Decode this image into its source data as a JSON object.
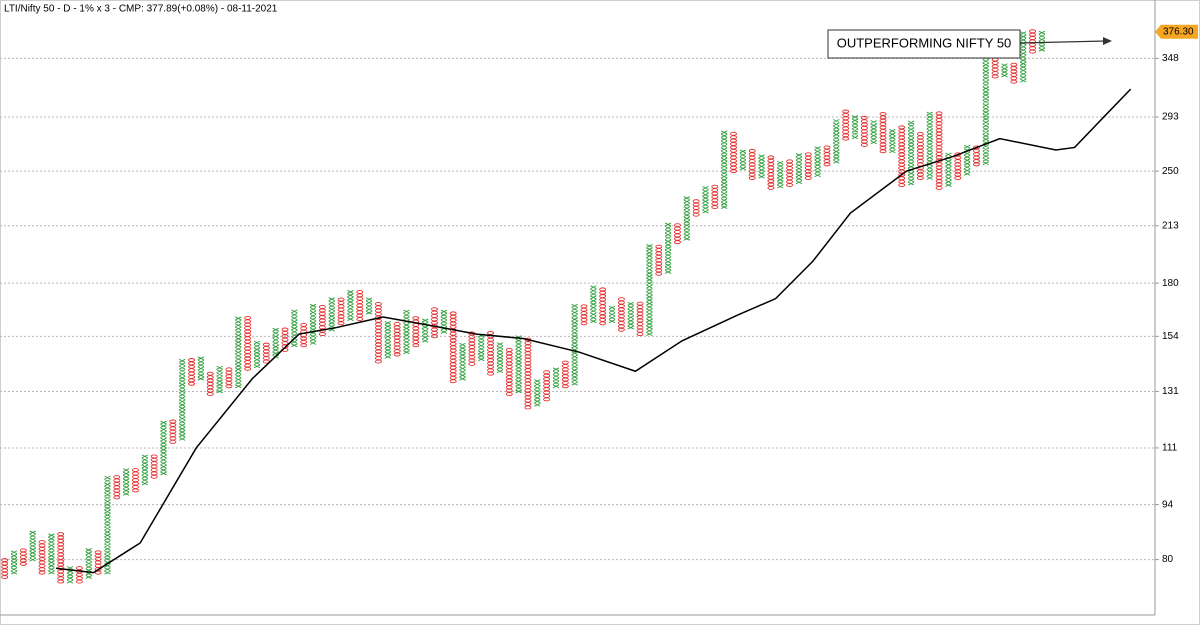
{
  "chart_data": {
    "type": "point-and-figure",
    "title": "LTI/Nifty 50 - D - 1% x 3 - CMP: 377.89(+0.08%) - 08-11-2021",
    "annotation": "OUTPERFORMING NIFTY 50",
    "log_scale": true,
    "grid": true,
    "x_color": "#2e9e3a",
    "o_color": "#e52b2b",
    "ma_color": "#000000",
    "ylim": [
      68,
      413
    ],
    "yticks": [
      80,
      94,
      111,
      131,
      154,
      180,
      213,
      250,
      293,
      348
    ],
    "last_price": {
      "value": 376.3,
      "label": "376.30"
    },
    "xlim": [
      0,
      122
    ],
    "columns": [
      {
        "box": "o",
        "low": 76,
        "high": 80
      },
      {
        "box": "x",
        "low": 77,
        "high": 82
      },
      {
        "box": "o",
        "low": 79,
        "high": 82
      },
      {
        "box": "x",
        "low": 80,
        "high": 87
      },
      {
        "box": "o",
        "low": 77,
        "high": 84
      },
      {
        "box": "x",
        "low": 77,
        "high": 86
      },
      {
        "box": "o",
        "low": 75,
        "high": 86
      },
      {
        "box": "x",
        "low": 75,
        "high": 78
      },
      {
        "box": "o",
        "low": 75,
        "high": 78
      },
      {
        "box": "x",
        "low": 76,
        "high": 82
      },
      {
        "box": "o",
        "low": 77,
        "high": 82
      },
      {
        "box": "x",
        "low": 77,
        "high": 102
      },
      {
        "box": "o",
        "low": 96,
        "high": 102
      },
      {
        "box": "x",
        "low": 97,
        "high": 104
      },
      {
        "box": "o",
        "low": 98,
        "high": 104
      },
      {
        "box": "x",
        "low": 100,
        "high": 108
      },
      {
        "box": "o",
        "low": 102,
        "high": 108
      },
      {
        "box": "x",
        "low": 103,
        "high": 120
      },
      {
        "box": "o",
        "low": 113,
        "high": 120
      },
      {
        "box": "x",
        "low": 114,
        "high": 143
      },
      {
        "box": "o",
        "low": 134,
        "high": 143
      },
      {
        "box": "x",
        "low": 136,
        "high": 145
      },
      {
        "box": "o",
        "low": 130,
        "high": 138
      },
      {
        "box": "x",
        "low": 131,
        "high": 140
      },
      {
        "box": "o",
        "low": 133,
        "high": 140
      },
      {
        "box": "x",
        "low": 133,
        "high": 163
      },
      {
        "box": "o",
        "low": 140,
        "high": 163
      },
      {
        "box": "x",
        "low": 141,
        "high": 151
      },
      {
        "box": "o",
        "low": 143,
        "high": 151
      },
      {
        "box": "x",
        "low": 145,
        "high": 157
      },
      {
        "box": "o",
        "low": 148,
        "high": 157
      },
      {
        "box": "x",
        "low": 150,
        "high": 165
      },
      {
        "box": "o",
        "low": 150,
        "high": 160
      },
      {
        "box": "x",
        "low": 151,
        "high": 168
      },
      {
        "box": "o",
        "low": 155,
        "high": 168
      },
      {
        "box": "x",
        "low": 157,
        "high": 172
      },
      {
        "box": "o",
        "low": 160,
        "high": 172
      },
      {
        "box": "x",
        "low": 162,
        "high": 175
      },
      {
        "box": "o",
        "low": 162,
        "high": 175
      },
      {
        "box": "x",
        "low": 165,
        "high": 172
      },
      {
        "box": "o",
        "low": 143,
        "high": 170
      },
      {
        "box": "x",
        "low": 145,
        "high": 160
      },
      {
        "box": "o",
        "low": 146,
        "high": 160
      },
      {
        "box": "x",
        "low": 147,
        "high": 165
      },
      {
        "box": "o",
        "low": 150,
        "high": 162
      },
      {
        "box": "x",
        "low": 152,
        "high": 162
      },
      {
        "box": "o",
        "low": 154,
        "high": 166
      },
      {
        "box": "x",
        "low": 156,
        "high": 165
      },
      {
        "box": "o",
        "low": 135,
        "high": 165
      },
      {
        "box": "x",
        "low": 136,
        "high": 150
      },
      {
        "box": "o",
        "low": 142,
        "high": 155
      },
      {
        "box": "x",
        "low": 144,
        "high": 155
      },
      {
        "box": "o",
        "low": 138,
        "high": 155
      },
      {
        "box": "x",
        "low": 139,
        "high": 150
      },
      {
        "box": "o",
        "low": 130,
        "high": 148
      },
      {
        "box": "x",
        "low": 131,
        "high": 153
      },
      {
        "box": "o",
        "low": 125,
        "high": 153
      },
      {
        "box": "x",
        "low": 126,
        "high": 135
      },
      {
        "box": "o",
        "low": 128,
        "high": 138
      },
      {
        "box": "x",
        "low": 133,
        "high": 140
      },
      {
        "box": "o",
        "low": 133,
        "high": 142
      },
      {
        "box": "x",
        "low": 134,
        "high": 168
      },
      {
        "box": "o",
        "low": 160,
        "high": 168
      },
      {
        "box": "x",
        "low": 161,
        "high": 178
      },
      {
        "box": "o",
        "low": 160,
        "high": 177
      },
      {
        "box": "x",
        "low": 161,
        "high": 168
      },
      {
        "box": "o",
        "low": 157,
        "high": 172
      },
      {
        "box": "x",
        "low": 158,
        "high": 170
      },
      {
        "box": "o",
        "low": 155,
        "high": 169
      },
      {
        "box": "x",
        "low": 155,
        "high": 200
      },
      {
        "box": "o",
        "low": 185,
        "high": 200
      },
      {
        "box": "x",
        "low": 186,
        "high": 213
      },
      {
        "box": "o",
        "low": 203,
        "high": 213
      },
      {
        "box": "x",
        "low": 205,
        "high": 230
      },
      {
        "box": "o",
        "low": 220,
        "high": 230
      },
      {
        "box": "x",
        "low": 222,
        "high": 238
      },
      {
        "box": "o",
        "low": 225,
        "high": 238
      },
      {
        "box": "x",
        "low": 225,
        "high": 280
      },
      {
        "box": "o",
        "low": 250,
        "high": 280
      },
      {
        "box": "x",
        "low": 252,
        "high": 265
      },
      {
        "box": "o",
        "low": 245,
        "high": 265
      },
      {
        "box": "x",
        "low": 246,
        "high": 262
      },
      {
        "box": "o",
        "low": 238,
        "high": 260
      },
      {
        "box": "x",
        "low": 239,
        "high": 255
      },
      {
        "box": "o",
        "low": 240,
        "high": 258
      },
      {
        "box": "x",
        "low": 242,
        "high": 262
      },
      {
        "box": "o",
        "low": 245,
        "high": 262
      },
      {
        "box": "x",
        "low": 247,
        "high": 268
      },
      {
        "box": "o",
        "low": 255,
        "high": 268
      },
      {
        "box": "x",
        "low": 257,
        "high": 290
      },
      {
        "box": "o",
        "low": 275,
        "high": 298
      },
      {
        "box": "x",
        "low": 276,
        "high": 292
      },
      {
        "box": "o",
        "low": 270,
        "high": 292
      },
      {
        "box": "x",
        "low": 272,
        "high": 290
      },
      {
        "box": "o",
        "low": 265,
        "high": 295
      },
      {
        "box": "x",
        "low": 265,
        "high": 282
      },
      {
        "box": "o",
        "low": 240,
        "high": 285
      },
      {
        "box": "x",
        "low": 241,
        "high": 287
      },
      {
        "box": "o",
        "low": 245,
        "high": 280
      },
      {
        "box": "x",
        "low": 245,
        "high": 295
      },
      {
        "box": "o",
        "low": 238,
        "high": 295
      },
      {
        "box": "x",
        "low": 240,
        "high": 262
      },
      {
        "box": "o",
        "low": 245,
        "high": 262
      },
      {
        "box": "x",
        "low": 248,
        "high": 268
      },
      {
        "box": "o",
        "low": 255,
        "high": 268
      },
      {
        "box": "x",
        "low": 256,
        "high": 348
      },
      {
        "box": "o",
        "low": 330,
        "high": 348
      },
      {
        "box": "x",
        "low": 331,
        "high": 342
      },
      {
        "box": "o",
        "low": 325,
        "high": 340
      },
      {
        "box": "x",
        "low": 326,
        "high": 375
      },
      {
        "box": "o",
        "low": 355,
        "high": 375
      },
      {
        "box": "x",
        "low": 357,
        "high": 376
      }
    ],
    "ma": {
      "x": [
        6,
        10,
        15,
        21,
        27,
        32,
        36,
        41,
        46,
        51,
        56,
        62,
        68,
        73,
        79,
        83,
        87,
        91,
        97,
        102,
        107,
        113,
        115,
        118,
        121
      ],
      "values": [
        78,
        77,
        84,
        111,
        136,
        155,
        158,
        163,
        159,
        155,
        153,
        147,
        139,
        152,
        164,
        172,
        192,
        221,
        250,
        261,
        275,
        266,
        268,
        292,
        318
      ]
    }
  }
}
